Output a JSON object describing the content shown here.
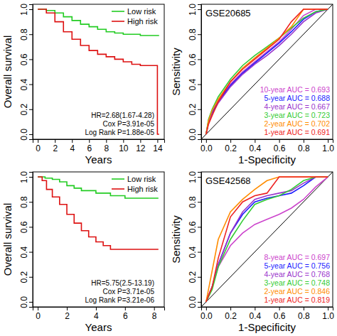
{
  "chart_data": [
    {
      "type": "line",
      "line_style": "step",
      "xlabel": "Years",
      "ylabel": "Overall survival",
      "xlim": [
        -0.6,
        14.8
      ],
      "ylim": [
        -0.04,
        1.04
      ],
      "xticks": [
        0,
        2,
        4,
        6,
        8,
        10,
        12,
        14
      ],
      "yticks": [
        {
          "value": 0,
          "label": "0.0"
        },
        0.2,
        0.4,
        0.6,
        0.8,
        {
          "value": 1,
          "label": "1.0"
        }
      ],
      "legend": "top right",
      "annotations": [
        "HR=2.68(1.67-4.28)",
        "Cox P=3.91e-05",
        "Log Rank P=1.88e-05"
      ],
      "series": [
        {
          "name": "Low risk",
          "color": "#22cc22",
          "x": [
            0,
            1,
            2,
            3,
            4,
            5,
            6,
            7,
            8,
            9,
            10,
            12,
            14.2
          ],
          "values": [
            1,
            0.99,
            0.97,
            0.94,
            0.91,
            0.88,
            0.86,
            0.84,
            0.82,
            0.81,
            0.8,
            0.79,
            0.79
          ]
        },
        {
          "name": "High risk",
          "color": "#dd1111",
          "x": [
            0,
            1,
            2,
            3,
            4,
            5,
            6,
            7,
            8,
            9,
            10,
            11,
            12,
            14,
            14.2
          ],
          "values": [
            1,
            0.97,
            0.9,
            0.82,
            0.76,
            0.71,
            0.67,
            0.64,
            0.62,
            0.6,
            0.58,
            0.56,
            0.55,
            0,
            0
          ]
        }
      ]
    },
    {
      "type": "line",
      "line_style": "solid",
      "title": "GSE20685",
      "xlabel": "1-Specificity",
      "ylabel": "Sensitivity",
      "xlim": [
        -0.04,
        1.04
      ],
      "ylim": [
        -0.04,
        1.04
      ],
      "xticks": [
        {
          "value": 0,
          "label": "0.0"
        },
        0.2,
        0.4,
        0.6,
        0.8,
        {
          "value": 1,
          "label": "1.0"
        }
      ],
      "yticks": [
        {
          "value": 0,
          "label": "0.0"
        },
        0.2,
        0.4,
        0.6,
        0.8,
        {
          "value": 1,
          "label": "1.0"
        }
      ],
      "legend": "bottom right",
      "x": [
        0,
        0.02,
        0.05,
        0.1,
        0.2,
        0.3,
        0.4,
        0.5,
        0.6,
        0.7,
        0.8,
        0.9,
        1
      ],
      "series": [
        {
          "name": "10-year AUC = 0.693",
          "color": "#cc44cc",
          "values": [
            0,
            0.1,
            0.18,
            0.27,
            0.4,
            0.5,
            0.58,
            0.66,
            0.74,
            0.84,
            0.95,
            1,
            1
          ]
        },
        {
          "name": "5-year AUC = 0.688",
          "color": "#1a1aff",
          "values": [
            0,
            0.1,
            0.17,
            0.26,
            0.39,
            0.49,
            0.57,
            0.65,
            0.73,
            0.82,
            0.92,
            0.98,
            1
          ]
        },
        {
          "name": "4-year AUC = 0.667",
          "color": "#9933cc",
          "values": [
            0,
            0.09,
            0.16,
            0.25,
            0.38,
            0.48,
            0.56,
            0.63,
            0.71,
            0.8,
            0.9,
            0.97,
            1
          ]
        },
        {
          "name": "3-year AUC = 0.723",
          "color": "#33cc33",
          "values": [
            0,
            0.12,
            0.2,
            0.3,
            0.44,
            0.55,
            0.63,
            0.7,
            0.77,
            0.85,
            0.93,
            0.98,
            1
          ]
        },
        {
          "name": "2-year AUC = 0.702",
          "color": "#ff8c00",
          "values": [
            0,
            0.11,
            0.19,
            0.28,
            0.42,
            0.53,
            0.61,
            0.69,
            0.77,
            0.86,
            1,
            1,
            1
          ]
        },
        {
          "name": "1-year AUC = 0.691",
          "color": "#ee2222",
          "values": [
            0,
            0.08,
            0.15,
            0.26,
            0.42,
            0.52,
            0.6,
            0.68,
            0.76,
            0.9,
            1,
            1,
            1
          ]
        }
      ]
    },
    {
      "type": "line",
      "line_style": "step",
      "xlabel": "Years",
      "ylabel": "Overall survival",
      "xlim": [
        -0.35,
        8.7
      ],
      "ylim": [
        -0.04,
        1.04
      ],
      "xticks": [
        0,
        2,
        4,
        6,
        8
      ],
      "yticks": [
        {
          "value": 0,
          "label": "0.0"
        },
        0.2,
        0.4,
        0.6,
        0.8,
        {
          "value": 1,
          "label": "1.0"
        }
      ],
      "legend": "top right",
      "annotations": [
        "HR=5.75(2.5-13.19)",
        "Cox P=3.71e-05",
        "Log Rank P=3.21e-06"
      ],
      "series": [
        {
          "name": "Low risk",
          "color": "#22cc22",
          "x": [
            0,
            0.5,
            1,
            1.5,
            2,
            2.5,
            3,
            4,
            5,
            6,
            7,
            8.3
          ],
          "values": [
            1,
            0.99,
            0.98,
            0.96,
            0.93,
            0.91,
            0.89,
            0.87,
            0.85,
            0.83,
            0.83,
            0.83
          ]
        },
        {
          "name": "High risk",
          "color": "#dd1111",
          "x": [
            0,
            0.3,
            0.6,
            1,
            1.5,
            2,
            2.5,
            3,
            3.5,
            4,
            4.5,
            5,
            6,
            8.3
          ],
          "values": [
            1,
            0.97,
            0.9,
            0.84,
            0.78,
            0.7,
            0.63,
            0.57,
            0.52,
            0.48,
            0.45,
            0.42,
            0.42,
            0.42
          ]
        }
      ]
    },
    {
      "type": "line",
      "line_style": "solid",
      "title": "GSE42568",
      "xlabel": "1-Specificity",
      "ylabel": "Sensitivity",
      "xlim": [
        -0.04,
        1.04
      ],
      "ylim": [
        -0.04,
        1.04
      ],
      "xticks": [
        {
          "value": 0,
          "label": "0.0"
        },
        0.2,
        0.4,
        0.6,
        0.8,
        {
          "value": 1,
          "label": "1.0"
        }
      ],
      "yticks": [
        {
          "value": 0,
          "label": "0.0"
        },
        0.2,
        0.4,
        0.6,
        0.8,
        {
          "value": 1,
          "label": "1.0"
        }
      ],
      "legend": "bottom right",
      "x": [
        0,
        0.02,
        0.05,
        0.1,
        0.2,
        0.3,
        0.4,
        0.5,
        0.6,
        0.7,
        0.8,
        0.9,
        1
      ],
      "series": [
        {
          "name": "8-year AUC = 0.697",
          "color": "#cc44cc",
          "values": [
            0,
            0.05,
            0.12,
            0.28,
            0.45,
            0.55,
            0.62,
            0.66,
            0.7,
            0.75,
            0.82,
            0.92,
            1
          ]
        },
        {
          "name": "5-year AUC = 0.756",
          "color": "#1a1aff",
          "values": [
            0,
            0.05,
            0.12,
            0.3,
            0.55,
            0.7,
            0.8,
            0.83,
            0.85,
            0.87,
            0.93,
            1,
            1
          ]
        },
        {
          "name": "4-year AUC = 0.768",
          "color": "#9933cc",
          "values": [
            0,
            0.05,
            0.12,
            0.3,
            0.55,
            0.72,
            0.82,
            0.85,
            0.87,
            0.89,
            0.95,
            1,
            1
          ]
        },
        {
          "name": "3-year AUC = 0.748",
          "color": "#33cc33",
          "values": [
            0,
            0.04,
            0.1,
            0.28,
            0.5,
            0.65,
            0.78,
            0.82,
            0.85,
            0.9,
            0.97,
            1,
            1
          ]
        },
        {
          "name": "2-year AUC = 0.846",
          "color": "#ff8c00",
          "values": [
            0,
            0.1,
            0.25,
            0.5,
            0.72,
            0.82,
            0.9,
            0.97,
            1,
            1,
            1,
            1,
            1
          ]
        },
        {
          "name": "1-year AUC = 0.819",
          "color": "#ee2222",
          "values": [
            0,
            0.05,
            0.12,
            0.35,
            0.68,
            0.8,
            0.85,
            0.87,
            1,
            1,
            1,
            1,
            1
          ]
        }
      ]
    }
  ]
}
